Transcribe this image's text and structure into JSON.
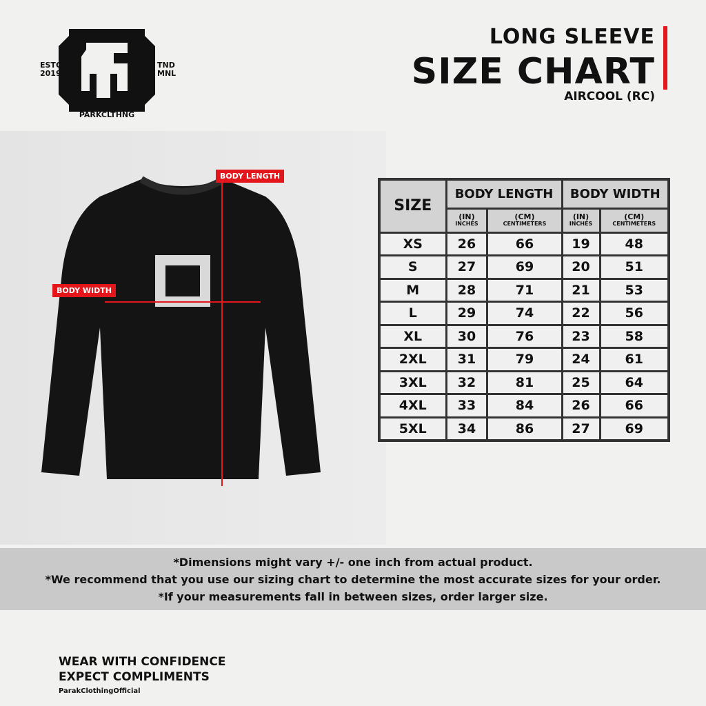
{
  "brand": {
    "logo_text": "PARKCLTHNG",
    "left_text": "ESTO 2019",
    "right_text": "TND MNL",
    "handle": "ParakClothingOfficial"
  },
  "header": {
    "line1": "LONG SLEEVE",
    "line2": "SIZE CHART",
    "line3": "AIRCOOL (RC)"
  },
  "labels": {
    "body_length": "BODY LENGTH",
    "body_width": "BODY WIDTH"
  },
  "table": {
    "size_header": "SIZE",
    "groups": [
      "BODY LENGTH",
      "BODY WIDTH"
    ],
    "units": [
      {
        "abbr": "(IN)",
        "full": "INCHES"
      },
      {
        "abbr": "(CM)",
        "full": "CENTIMETERS"
      },
      {
        "abbr": "(IN)",
        "full": "INCHES"
      },
      {
        "abbr": "(CM)",
        "full": "CENTIMETERS"
      }
    ],
    "rows": [
      [
        "XS",
        "26",
        "66",
        "19",
        "48"
      ],
      [
        "S",
        "27",
        "69",
        "20",
        "51"
      ],
      [
        "M",
        "28",
        "71",
        "21",
        "53"
      ],
      [
        "L",
        "29",
        "74",
        "22",
        "56"
      ],
      [
        "XL",
        "30",
        "76",
        "23",
        "58"
      ],
      [
        "2XL",
        "31",
        "79",
        "24",
        "61"
      ],
      [
        "3XL",
        "32",
        "81",
        "25",
        "64"
      ],
      [
        "4XL",
        "33",
        "84",
        "26",
        "66"
      ],
      [
        "5XL",
        "34",
        "86",
        "27",
        "69"
      ]
    ]
  },
  "notes": [
    "*Dimensions might vary +/- one inch from actual product.",
    "*We recommend that you use our sizing chart to determine the most accurate sizes for your order.",
    "*If your measurements fall in between sizes, order larger size."
  ],
  "footer": {
    "line1": "WEAR WITH CONFIDENCE",
    "line2": "EXPECT COMPLIMENTS"
  },
  "colors": {
    "accent": "#e3161b",
    "shirt": "#111111",
    "header_cell": "#d3d3d3"
  }
}
